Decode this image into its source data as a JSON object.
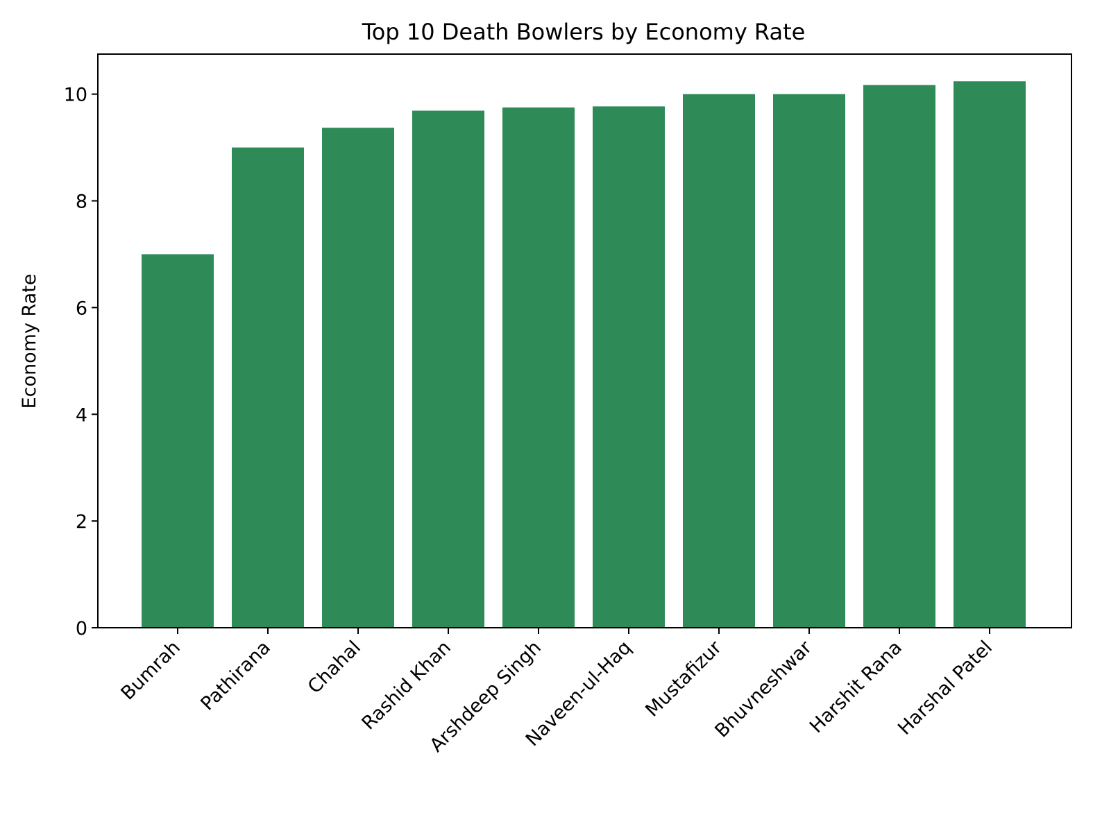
{
  "chart_data": {
    "type": "bar",
    "title": "Top 10 Death Bowlers by Economy Rate",
    "xlabel": "",
    "ylabel": "Economy Rate",
    "categories": [
      "Bumrah",
      "Pathirana",
      "Chahal",
      "Rashid Khan",
      "Arshdeep Singh",
      "Naveen-ul-Haq",
      "Mustafizur",
      "Bhuvneshwar",
      "Harshit Rana",
      "Harshal Patel"
    ],
    "values": [
      7.0,
      9.0,
      9.37,
      9.69,
      9.75,
      9.77,
      10.0,
      10.0,
      10.17,
      10.24
    ],
    "ylim": [
      0,
      10.75
    ],
    "yticks": [
      0,
      2,
      4,
      6,
      8,
      10
    ],
    "bar_color": "#2e8b57",
    "grid": false,
    "legend": "none"
  }
}
